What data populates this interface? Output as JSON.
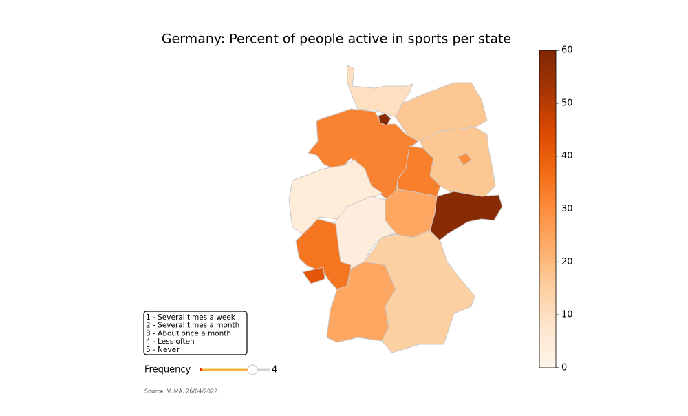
{
  "chart_data": {
    "type": "choropleth",
    "title": "Germany: Percent of people active in sports per state",
    "values": [
      10,
      58,
      17,
      32,
      17,
      30,
      33,
      58,
      24,
      5,
      4,
      35,
      42,
      24,
      15
    ],
    "colormap": "Oranges",
    "clim": [
      0,
      60
    ],
    "cticks": [
      0,
      10,
      20,
      30,
      40,
      50,
      60
    ],
    "legend_lines": [
      "1 - Several times a week",
      "2 - Several times a month",
      "3 - About once a month",
      "4 - Less often",
      "5 - Never"
    ],
    "source": "Source: VuMA, 26/04/2022"
  },
  "slider": {
    "label": "Frequency",
    "value": 4,
    "min": 1,
    "max": 5
  }
}
